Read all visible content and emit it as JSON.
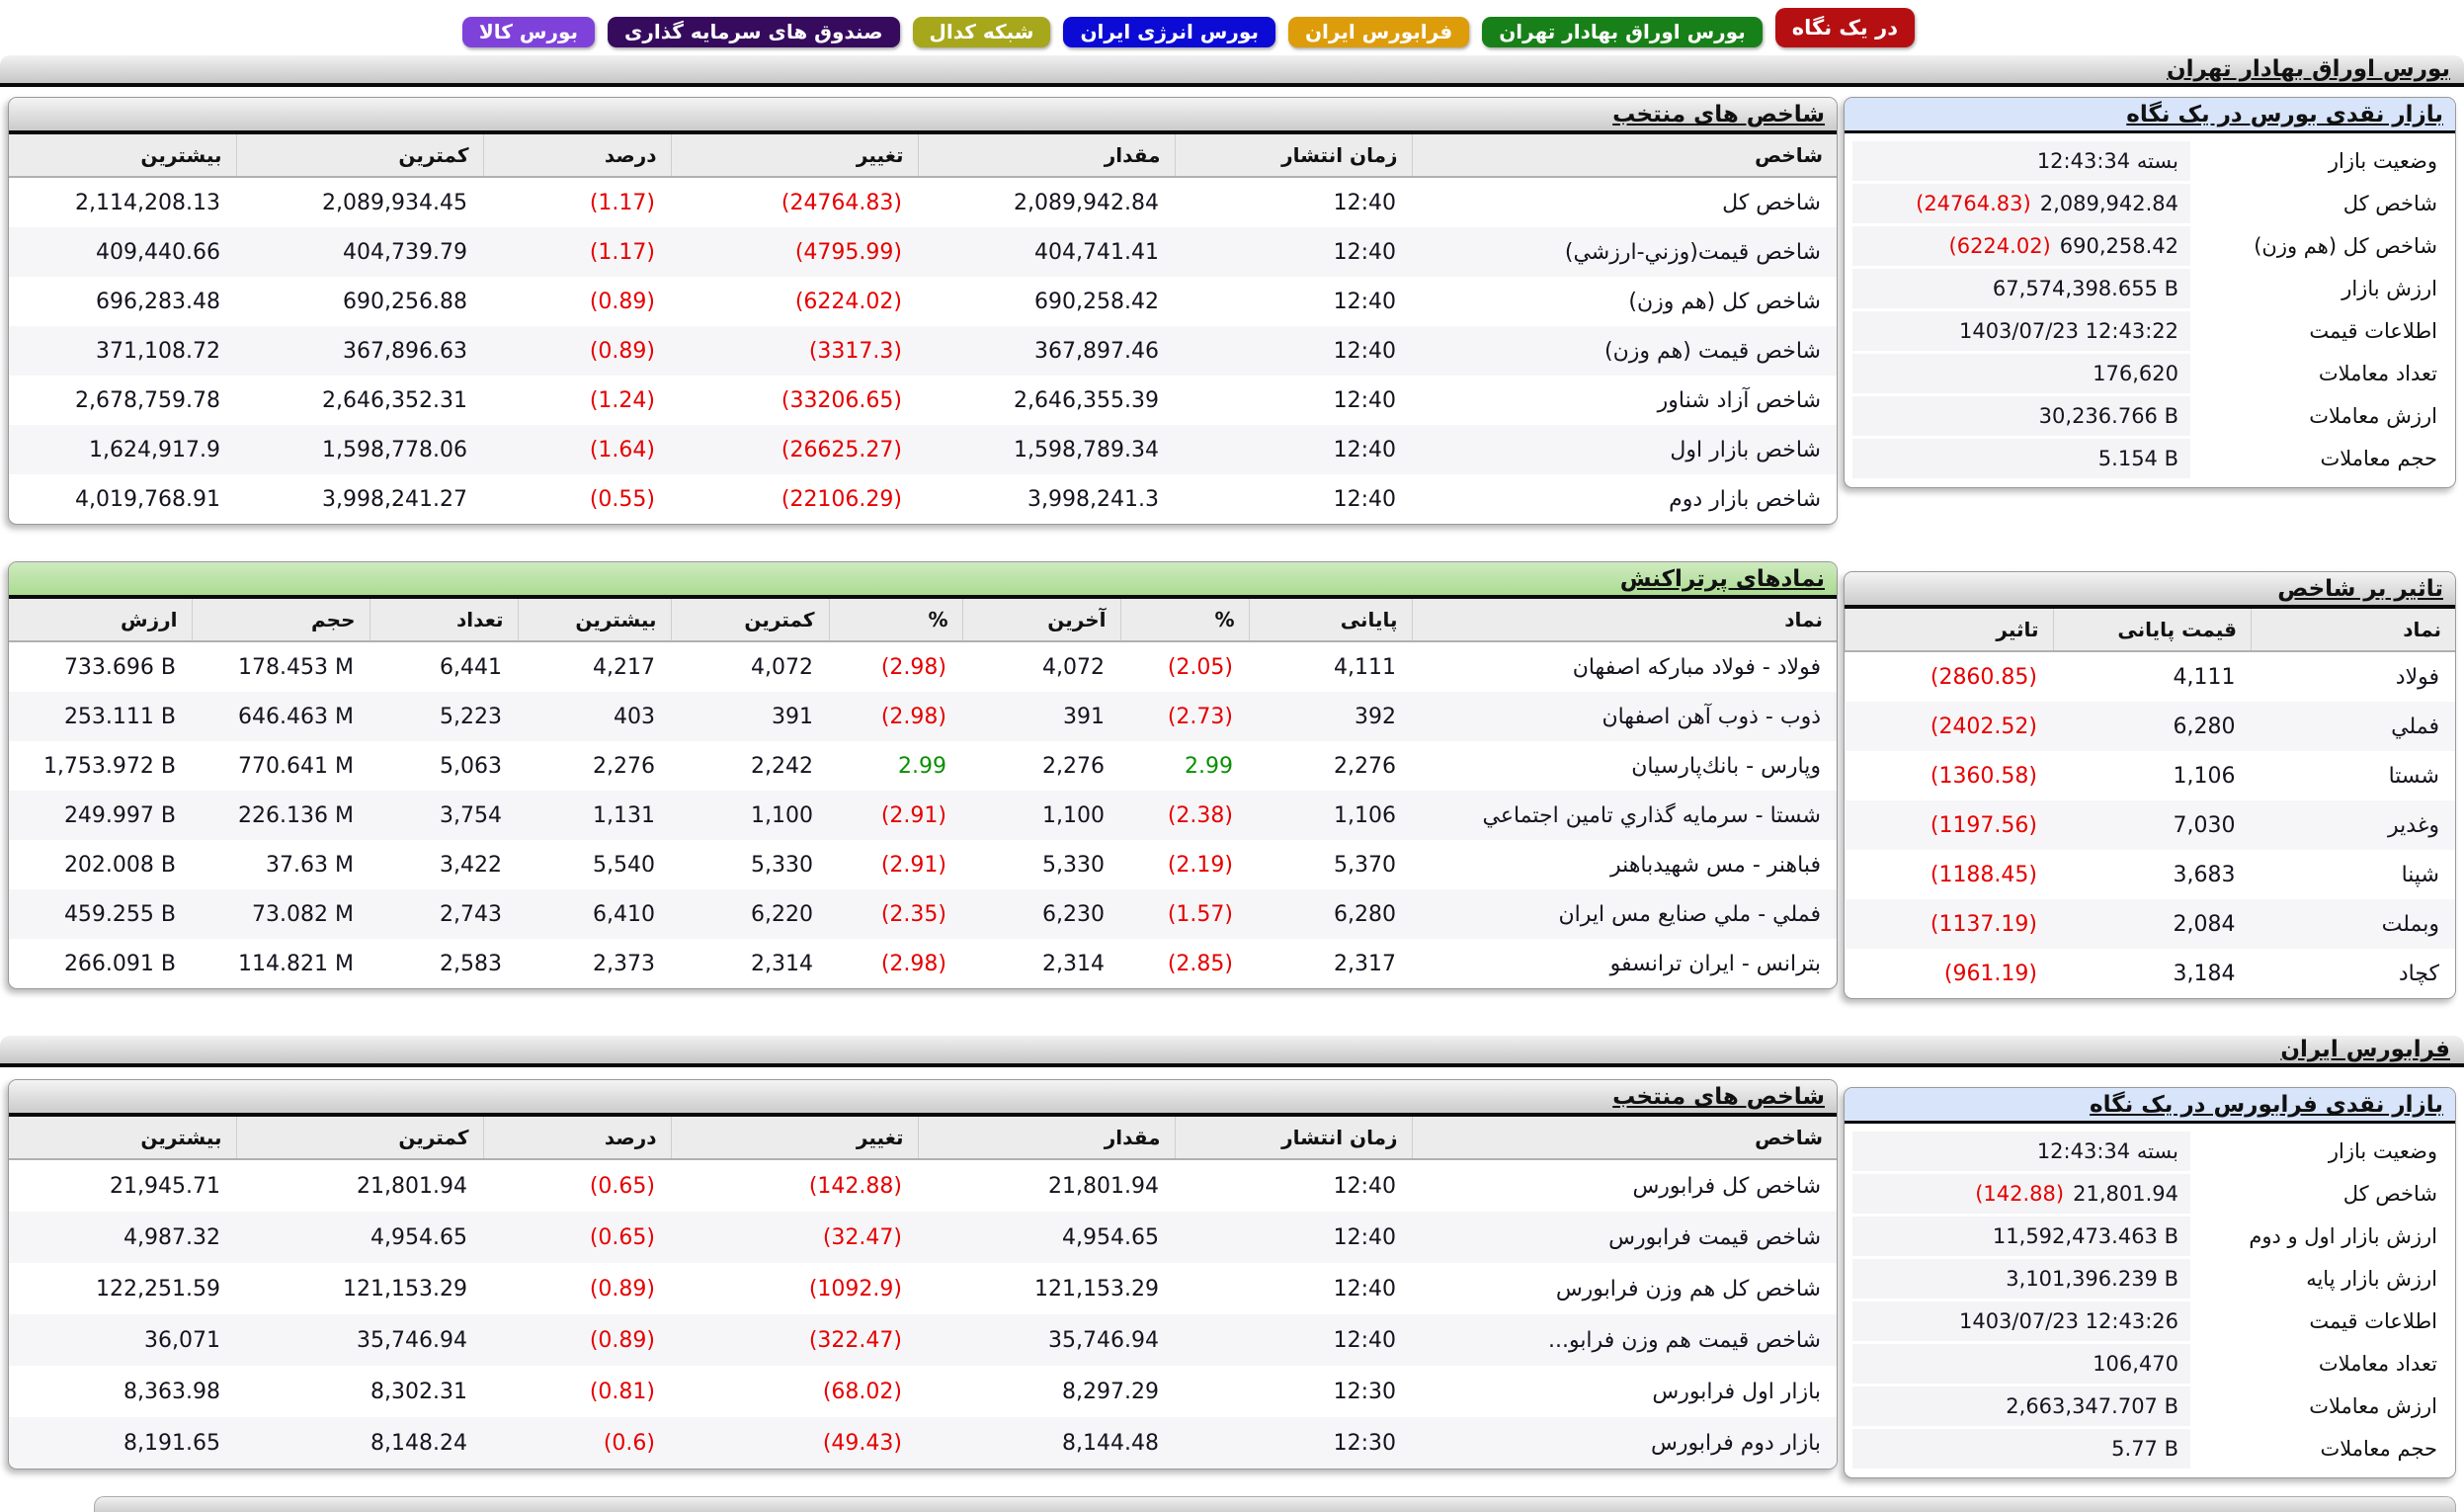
{
  "tabs": [
    {
      "id": "overview",
      "label": "در یک نگاه",
      "color": "#b50f12",
      "active": true
    },
    {
      "id": "tse",
      "label": "بورس اوراق بهادار تهران",
      "color": "#178018",
      "active": false
    },
    {
      "id": "ifb",
      "label": "فرابورس ایران",
      "color": "#dd9c0a",
      "active": false
    },
    {
      "id": "energy",
      "label": "بورس انرژی ایران",
      "color": "#0b0bd5",
      "active": false
    },
    {
      "id": "codal",
      "label": "شبکه کدال",
      "color": "#a6a71b",
      "active": false
    },
    {
      "id": "funds",
      "label": "صندوق های سرمایه گذاری",
      "color": "#360b5e",
      "active": false
    },
    {
      "id": "commodity",
      "label": "بورس کالا",
      "color": "#7e42da",
      "active": false
    }
  ],
  "section_bars": {
    "tse": "بورس اوراق بهادار تهران",
    "ifb": "فرابورس ایران"
  },
  "tse_glance": {
    "title": "بازار نقدی بورس در یک نگاه",
    "rows": [
      {
        "label": "وضعیت بازار",
        "value": "بسته 12:43:34"
      },
      {
        "label": "شاخص کل",
        "value": "2,089,942.84",
        "extra": "(24764.83)"
      },
      {
        "label": "شاخص کل (هم وزن)",
        "value": "690,258.42",
        "extra": "(6224.02)"
      },
      {
        "label": "ارزش بازار",
        "value": "67,574,398.655 B"
      },
      {
        "label": "اطلاعات قیمت",
        "value": "1403/07/23 12:43:22"
      },
      {
        "label": "تعداد معاملات",
        "value": "176,620"
      },
      {
        "label": "ارزش معاملات",
        "value": "30,236.766 B"
      },
      {
        "label": "حجم معاملات",
        "value": "5.154 B"
      }
    ]
  },
  "tse_indices": {
    "title": "شاخص های منتخب",
    "headers": [
      "شاخص",
      "زمان انتشار",
      "مقدار",
      "تغییر",
      "درصد",
      "کمترین",
      "بیشترین"
    ],
    "rows": [
      [
        "شاخص کل",
        "12:40",
        "2,089,942.84",
        "(24764.83)",
        "(1.17)",
        "2,089,934.45",
        "2,114,208.13"
      ],
      [
        "شاخص قیمت(وزني-ارزشي)",
        "12:40",
        "404,741.41",
        "(4795.99)",
        "(1.17)",
        "404,739.79",
        "409,440.66"
      ],
      [
        "شاخص کل (هم وزن)",
        "12:40",
        "690,258.42",
        "(6224.02)",
        "(0.89)",
        "690,256.88",
        "696,283.48"
      ],
      [
        "شاخص قیمت (هم وزن)",
        "12:40",
        "367,897.46",
        "(3317.3)",
        "(0.89)",
        "367,896.63",
        "371,108.72"
      ],
      [
        "شاخص آزاد شناور",
        "12:40",
        "2,646,355.39",
        "(33206.65)",
        "(1.24)",
        "2,646,352.31",
        "2,678,759.78"
      ],
      [
        "شاخص بازار اول",
        "12:40",
        "1,598,789.34",
        "(26625.27)",
        "(1.64)",
        "1,598,778.06",
        "1,624,917.9"
      ],
      [
        "شاخص بازار دوم",
        "12:40",
        "3,998,241.3",
        "(22106.29)",
        "(0.55)",
        "3,998,241.27",
        "4,019,768.91"
      ]
    ]
  },
  "transactions": {
    "title": "نمادهای پرتراکنش",
    "headers": [
      "نماد",
      "پایانی",
      "%",
      "آخرین",
      "%",
      "کمترین",
      "بیشترین",
      "تعداد",
      "حجم",
      "ارزش"
    ],
    "rows": [
      [
        "فولاد - فولاد مباركه اصفهان",
        "4,111",
        "(2.05)",
        "4,072",
        "(2.98)",
        "4,072",
        "4,217",
        "6,441",
        "178.453 M",
        "733.696 B"
      ],
      [
        "ذوب - ذوب آهن اصفهان",
        "392",
        "(2.73)",
        "391",
        "(2.98)",
        "391",
        "403",
        "5,223",
        "646.463 M",
        "253.111 B"
      ],
      [
        "وپارس - بانك‌پارسيان",
        "2,276",
        {
          "t": "2.99",
          "c": "pos"
        },
        "2,276",
        {
          "t": "2.99",
          "c": "pos"
        },
        "2,242",
        "2,276",
        "5,063",
        "770.641 M",
        "1,753.972 B"
      ],
      [
        "شستا - سرمايه گذاري تامين اجتماعي",
        "1,106",
        "(2.38)",
        "1,100",
        "(2.91)",
        "1,100",
        "1,131",
        "3,754",
        "226.136 M",
        "249.997 B"
      ],
      [
        "فباهنر - مس شهيدباهنر",
        "5,370",
        "(2.19)",
        "5,330",
        "(2.91)",
        "5,330",
        "5,540",
        "3,422",
        "37.63 M",
        "202.008 B"
      ],
      [
        "فملي - ملي صنايع مس ايران",
        "6,280",
        "(1.57)",
        "6,230",
        "(2.35)",
        "6,220",
        "6,410",
        "2,743",
        "73.082 M",
        "459.255 B"
      ],
      [
        "بترانس - ايران ترانسفو",
        "2,317",
        "(2.85)",
        "2,314",
        "(2.98)",
        "2,314",
        "2,373",
        "2,583",
        "114.821 M",
        "266.091 B"
      ]
    ]
  },
  "impact": {
    "title": "تاثیر بر شاخص",
    "headers": [
      "نماد",
      "قیمت پایانی",
      "تاثیر"
    ],
    "rows": [
      [
        "فولاد",
        "4,111",
        "(2860.85)"
      ],
      [
        "فملي",
        "6,280",
        "(2402.52)"
      ],
      [
        "شستا",
        "1,106",
        "(1360.58)"
      ],
      [
        "وغدير",
        "7,030",
        "(1197.56)"
      ],
      [
        "شپنا",
        "3,683",
        "(1188.45)"
      ],
      [
        "وبملت",
        "2,084",
        "(1137.19)"
      ],
      [
        "کچاد",
        "3,184",
        "(961.19)"
      ]
    ]
  },
  "ifb_glance": {
    "title": "بازار نقدی فرابورس در یک نگاه",
    "rows": [
      {
        "label": "وضعیت بازار",
        "value": "بسته 12:43:34"
      },
      {
        "label": "شاخص کل",
        "value": "21,801.94",
        "extra": "(142.88)"
      },
      {
        "label": "ارزش بازار اول و دوم",
        "value": "11,592,473.463 B"
      },
      {
        "label": "ارزش بازار پایه",
        "value": "3,101,396.239 B"
      },
      {
        "label": "اطلاعات قیمت",
        "value": "1403/07/23 12:43:26"
      },
      {
        "label": "تعداد معاملات",
        "value": "106,470"
      },
      {
        "label": "ارزش معاملات",
        "value": "2,663,347.707 B"
      },
      {
        "label": "حجم معاملات",
        "value": "5.77 B"
      }
    ]
  },
  "ifb_indices": {
    "title": "شاخص های منتخب",
    "headers": [
      "شاخص",
      "زمان انتشار",
      "مقدار",
      "تغییر",
      "درصد",
      "کمترین",
      "بیشترین"
    ],
    "rows": [
      [
        "شاخص کل فرابورس",
        "12:40",
        "21,801.94",
        "(142.88)",
        "(0.65)",
        "21,801.94",
        "21,945.71"
      ],
      [
        "شاخص قیمت فرابورس",
        "12:40",
        "4,954.65",
        "(32.47)",
        "(0.65)",
        "4,954.65",
        "4,987.32"
      ],
      [
        "شاخص کل هم وزن فرابورس",
        "12:40",
        "121,153.29",
        "(1092.9)",
        "(0.89)",
        "121,153.29",
        "122,251.59"
      ],
      [
        "شاخص قیمت هم وزن فرابو...",
        "12:40",
        "35,746.94",
        "(322.47)",
        "(0.89)",
        "35,746.94",
        "36,071"
      ],
      [
        "بازار اول فرابورس",
        "12:30",
        "8,297.29",
        "(68.02)",
        "(0.81)",
        "8,302.31",
        "8,363.98"
      ],
      [
        "بازار دوم فرابورس",
        "12:30",
        "8,144.48",
        "(49.43)",
        "(0.6)",
        "8,148.24",
        "8,191.65"
      ]
    ]
  }
}
